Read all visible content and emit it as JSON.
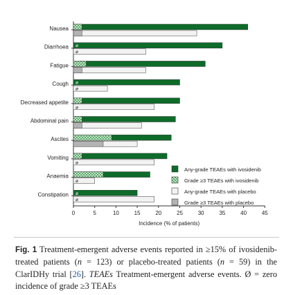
{
  "chart_data": {
    "type": "bar",
    "orientation": "horizontal",
    "categories": [
      "Nausea",
      "Diarrhoea",
      "Fatigue",
      "Cough",
      "Decreased appetite",
      "Abdominal pain",
      "Ascites",
      "Vomiting",
      "Anaemia",
      "Constipation"
    ],
    "series": [
      {
        "name": "Any-grade TEAEs with ivosidenib",
        "color": "#0e6b2a",
        "values": [
          41,
          35,
          31,
          25,
          25,
          24,
          23,
          22,
          18,
          15
        ]
      },
      {
        "name": "Grade ≥3 TEAEs with ivosidenib",
        "color": "#7fbf8a",
        "pattern": "checkered",
        "values": [
          2,
          0,
          3,
          0,
          2,
          2,
          9,
          2,
          7,
          0
        ]
      },
      {
        "name": "Any-grade TEAEs with placebo",
        "color": "#f2f2f2",
        "values": [
          29,
          17,
          17,
          8,
          19,
          16,
          15,
          19,
          5,
          19
        ]
      },
      {
        "name": "Grade ≥3 TEAEs with placebo",
        "color": "#b3b3b3",
        "values": [
          2,
          0,
          2,
          0,
          0,
          2,
          7,
          0,
          0,
          0
        ]
      }
    ],
    "zero_marker": "ø",
    "xlabel": "Incidence (% of patients)",
    "xlim": [
      0,
      45
    ],
    "xticks": [
      0,
      5,
      10,
      15,
      20,
      25,
      30,
      35,
      40,
      45
    ],
    "grid": false,
    "legend_position": "bottom-right"
  },
  "caption": {
    "label": "Fig. 1",
    "text_1": "Treatment-emergent adverse events reported in ≥15% of ivosidenib-treated patients (",
    "n_var": "n",
    "text_2": " = 123) or placebo-treated patients (",
    "text_3": " = 59) in the ClarIDHy trial [",
    "ref": "26",
    "text_4": "]. ",
    "abbr": "TEAEs",
    "text_5": " Treatment-emergent adverse events. Ø = zero incidence of grade ≥3 TEAEs"
  }
}
